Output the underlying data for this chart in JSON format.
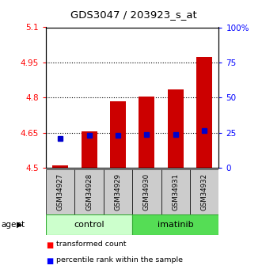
{
  "title": "GDS3047 / 203923_s_at",
  "samples": [
    "GSM34927",
    "GSM34928",
    "GSM34929",
    "GSM34930",
    "GSM34931",
    "GSM34932"
  ],
  "transformed_count": [
    4.51,
    4.655,
    4.785,
    4.805,
    4.835,
    4.975
  ],
  "percentile_rank_val": [
    4.625,
    4.638,
    4.638,
    4.642,
    4.642,
    4.658
  ],
  "bar_bottom": 4.5,
  "ylim_left": [
    4.5,
    5.1
  ],
  "ylim_right": [
    0,
    100
  ],
  "yticks_left": [
    4.5,
    4.65,
    4.8,
    4.95,
    5.1
  ],
  "yticks_right": [
    0,
    25,
    50,
    75,
    100
  ],
  "ytick_labels_right": [
    "0",
    "25",
    "50",
    "75",
    "100%"
  ],
  "bar_color": "#cc0000",
  "dot_color": "#0000cc",
  "control_bg": "#ccffcc",
  "imatinib_bg": "#44cc44",
  "sample_bg": "#cccccc",
  "bar_width": 0.55,
  "legend_red": "transformed count",
  "legend_blue": "percentile rank within the sample"
}
